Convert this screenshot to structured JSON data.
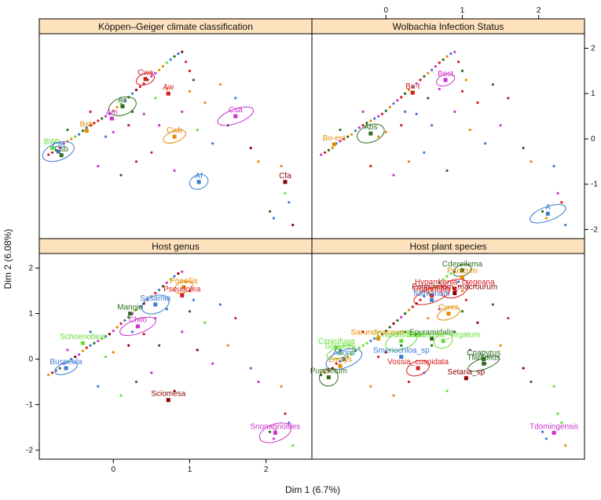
{
  "chart_data": {
    "type": "scatter",
    "xlabel": "Dim 1 (6.7%)",
    "ylabel": "Dim 2 (6.08%)",
    "xlim": [
      -0.97,
      2.6
    ],
    "ylim": [
      -2.2,
      2.32
    ],
    "xticks": [
      0,
      1,
      2
    ],
    "yticks": [
      -2,
      -1,
      0,
      1,
      2
    ],
    "panels": [
      {
        "title": "Köppen–Geiger climate classification",
        "groups": [
          {
            "name": "Cwa",
            "color": "#d7191c",
            "x": 0.42,
            "y": 1.32
          },
          {
            "name": "Aw",
            "color": "#d7191c",
            "x": 0.72,
            "y": 1.0
          },
          {
            "name": "As",
            "color": "#2e6b1f",
            "x": 0.12,
            "y": 0.72
          },
          {
            "name": "Am",
            "color": "#cc33cc",
            "x": -0.02,
            "y": 0.45
          },
          {
            "name": "Csa",
            "color": "#cc33cc",
            "x": 1.6,
            "y": 0.5
          },
          {
            "name": "Bsh",
            "color": "#e68a00",
            "x": -0.35,
            "y": 0.18
          },
          {
            "name": "Cwb",
            "color": "#e68a00",
            "x": 0.8,
            "y": 0.05
          },
          {
            "name": "BWh",
            "color": "#66dd33",
            "x": -0.8,
            "y": -0.2
          },
          {
            "name": "Cfb",
            "color": "#3a7bd5",
            "x": -0.72,
            "y": -0.28
          },
          {
            "name": "Csb",
            "color": "#2e6b1f",
            "x": -0.68,
            "y": -0.36
          },
          {
            "name": "Af",
            "color": "#3a7bd5",
            "x": 1.12,
            "y": -0.95
          },
          {
            "name": "Cfa",
            "color": "#8b0000",
            "x": 2.25,
            "y": -0.95
          }
        ]
      },
      {
        "title": "Wolbachia Infection Status",
        "groups": [
          {
            "name": "Best",
            "color": "#cc33cc",
            "x": 0.78,
            "y": 1.3
          },
          {
            "name": "Ba-t",
            "color": "#d7191c",
            "x": 0.35,
            "y": 1.02
          },
          {
            "name": "Abs",
            "color": "#2e6b1f",
            "x": -0.2,
            "y": 0.12
          },
          {
            "name": "Bo-est",
            "color": "#e68a00",
            "x": -0.68,
            "y": -0.12
          },
          {
            "name": "A",
            "color": "#3a7bd5",
            "x": 2.12,
            "y": -1.65
          }
        ]
      },
      {
        "title": "Host genus",
        "groups": [
          {
            "name": "Poecilia",
            "color": "#e68a00",
            "x": 0.92,
            "y": 1.58
          },
          {
            "name": "Pseudolea",
            "color": "#d7191c",
            "x": 0.9,
            "y": 1.4
          },
          {
            "name": "Sesamia",
            "color": "#3a7bd5",
            "x": 0.55,
            "y": 1.2
          },
          {
            "name": "Mangio",
            "color": "#2e6b1f",
            "x": 0.22,
            "y": 1.0
          },
          {
            "name": "Chilo",
            "color": "#cc33cc",
            "x": 0.32,
            "y": 0.72
          },
          {
            "name": "Schoenobius",
            "color": "#66dd33",
            "x": -0.4,
            "y": 0.35
          },
          {
            "name": "Busseola",
            "color": "#3a7bd5",
            "x": -0.62,
            "y": -0.2
          },
          {
            "name": "Sciomesa",
            "color": "#8b0000",
            "x": 0.72,
            "y": -0.9
          },
          {
            "name": "Snonagrioides",
            "color": "#cc33cc",
            "x": 2.12,
            "y": -1.62
          }
        ]
      },
      {
        "title": "Host plant species",
        "groups": [
          {
            "name": "Cdereilema",
            "color": "#2e6b1f",
            "x": 1.0,
            "y": 1.95
          },
          {
            "name": "Panicum",
            "color": "#e68a00",
            "x": 1.0,
            "y": 1.8
          },
          {
            "name": "Hyparrhenia_cregeana",
            "color": "#d7191c",
            "x": 0.9,
            "y": 1.55
          },
          {
            "name": "Pennisetum_macrourum",
            "color": "#8b0000",
            "x": 0.9,
            "y": 1.45
          },
          {
            "name": "Rottboellia",
            "color": "#d7191c",
            "x": 0.6,
            "y": 1.4
          },
          {
            "name": "fullmanum",
            "color": "#3a7bd5",
            "x": 0.6,
            "y": 1.3
          },
          {
            "name": "Cyres",
            "color": "#e68a00",
            "x": 0.82,
            "y": 1.0
          },
          {
            "name": "Sarundinaceum",
            "color": "#e68a00",
            "x": -0.1,
            "y": 0.45
          },
          {
            "name": "Cnordianthum",
            "color": "#66dd33",
            "x": 0.2,
            "y": 0.4
          },
          {
            "name": "Epyramidalis",
            "color": "#2e6b1f",
            "x": 0.6,
            "y": 0.45
          },
          {
            "name": "Sudanense_virgatum",
            "color": "#66dd33",
            "x": 0.75,
            "y": 0.4
          },
          {
            "name": "Cimicifuga",
            "color": "#66dd33",
            "x": -0.65,
            "y": 0.25
          },
          {
            "name": "Soriulum",
            "color": "#66dd33",
            "x": -0.6,
            "y": 0.15
          },
          {
            "name": "Smeriochloa_sp",
            "color": "#3a7bd5",
            "x": 0.2,
            "y": 0.05
          },
          {
            "name": "Adoris",
            "color": "#3a7bd5",
            "x": -0.55,
            "y": 0.0
          },
          {
            "name": "Zmays",
            "color": "#e68a00",
            "x": -0.6,
            "y": -0.15
          },
          {
            "name": "Vossia_cuspidata",
            "color": "#d7191c",
            "x": 0.42,
            "y": -0.2
          },
          {
            "name": "Cpapyrus",
            "color": "#2e6b1f",
            "x": 1.28,
            "y": 0.0
          },
          {
            "name": "Tlatifolius",
            "color": "#2e6b1f",
            "x": 1.28,
            "y": -0.1
          },
          {
            "name": "Setaria_sp",
            "color": "#8b0000",
            "x": 1.05,
            "y": -0.42
          },
          {
            "name": "Punisetum",
            "color": "#2e6b1f",
            "x": -0.75,
            "y": -0.4
          },
          {
            "name": "Tdomingensis",
            "color": "#cc33cc",
            "x": 2.2,
            "y": -1.62
          }
        ]
      }
    ],
    "points": [
      [
        -0.85,
        -0.35
      ],
      [
        -0.8,
        -0.3
      ],
      [
        -0.75,
        -0.25
      ],
      [
        -0.7,
        -0.2
      ],
      [
        -0.65,
        -0.1
      ],
      [
        -0.6,
        -0.05
      ],
      [
        -0.55,
        0.0
      ],
      [
        -0.5,
        0.05
      ],
      [
        -0.45,
        0.1
      ],
      [
        -0.4,
        0.18
      ],
      [
        -0.35,
        0.25
      ],
      [
        -0.3,
        0.3
      ],
      [
        -0.25,
        0.35
      ],
      [
        -0.2,
        0.4
      ],
      [
        -0.15,
        0.45
      ],
      [
        -0.1,
        0.5
      ],
      [
        -0.05,
        0.55
      ],
      [
        0.0,
        0.62
      ],
      [
        0.05,
        0.7
      ],
      [
        0.1,
        0.78
      ],
      [
        0.15,
        0.85
      ],
      [
        0.2,
        0.92
      ],
      [
        0.25,
        1.0
      ],
      [
        0.3,
        1.08
      ],
      [
        0.35,
        1.15
      ],
      [
        0.4,
        1.22
      ],
      [
        0.45,
        1.3
      ],
      [
        0.5,
        1.38
      ],
      [
        0.55,
        1.45
      ],
      [
        0.6,
        1.52
      ],
      [
        0.65,
        1.6
      ],
      [
        0.7,
        1.68
      ],
      [
        0.75,
        1.75
      ],
      [
        0.8,
        1.82
      ],
      [
        0.85,
        1.88
      ],
      [
        0.9,
        1.92
      ],
      [
        0.95,
        1.7
      ],
      [
        1.0,
        1.5
      ],
      [
        1.05,
        1.3
      ],
      [
        0.6,
        0.3
      ],
      [
        0.9,
        0.6
      ],
      [
        1.2,
        0.8
      ],
      [
        1.4,
        1.2
      ],
      [
        1.1,
        0.2
      ],
      [
        1.3,
        -0.1
      ],
      [
        1.5,
        0.3
      ],
      [
        1.6,
        0.9
      ],
      [
        1.8,
        -0.2
      ],
      [
        0.3,
        -0.5
      ],
      [
        0.5,
        -0.3
      ],
      [
        0.1,
        -0.8
      ],
      [
        -0.2,
        -0.6
      ],
      [
        0.8,
        -0.7
      ],
      [
        1.9,
        -0.5
      ],
      [
        2.2,
        -0.6
      ],
      [
        2.25,
        -1.2
      ],
      [
        2.3,
        -1.4
      ],
      [
        2.05,
        -1.6
      ],
      [
        2.1,
        -1.75
      ],
      [
        2.35,
        -1.9
      ],
      [
        -0.3,
        0.6
      ],
      [
        0.2,
        0.3
      ],
      [
        -0.6,
        0.2
      ],
      [
        0.0,
        0.15
      ],
      [
        0.4,
        0.55
      ],
      [
        0.7,
        1.1
      ],
      [
        1.0,
        1.05
      ],
      [
        0.55,
        0.9
      ],
      [
        -0.1,
        0.05
      ],
      [
        0.25,
        0.6
      ]
    ]
  }
}
